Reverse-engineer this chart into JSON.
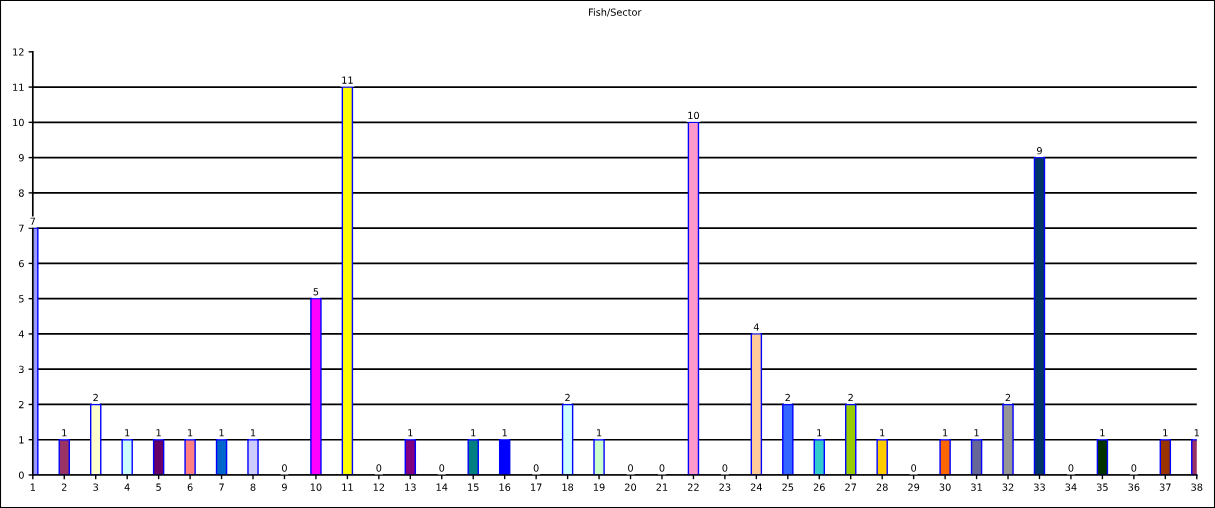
{
  "chart_data": {
    "type": "bar",
    "title": "Fish/Sector",
    "categories": [
      "1",
      "2",
      "3",
      "4",
      "5",
      "6",
      "7",
      "8",
      "9",
      "10",
      "11",
      "12",
      "13",
      "14",
      "15",
      "16",
      "17",
      "18",
      "19",
      "20",
      "21",
      "22",
      "23",
      "24",
      "25",
      "26",
      "27",
      "28",
      "29",
      "30",
      "31",
      "32",
      "33",
      "34",
      "35",
      "36",
      "37",
      "38"
    ],
    "values": [
      7,
      1,
      2,
      1,
      1,
      1,
      1,
      1,
      0,
      5,
      11,
      0,
      1,
      0,
      1,
      1,
      0,
      2,
      1,
      0,
      0,
      10,
      0,
      4,
      2,
      1,
      2,
      1,
      0,
      1,
      1,
      2,
      9,
      0,
      1,
      0,
      1,
      1
    ],
    "colors": [
      "#9999ff",
      "#993366",
      "#ffffcc",
      "#ccffff",
      "#660066",
      "#ff8080",
      "#0066cc",
      "#ccccff",
      null,
      "#ff00ff",
      "#ffff00",
      null,
      "#800080",
      null,
      "#008080",
      "#0000ff",
      null,
      "#ccffff",
      "#ccffcc",
      null,
      null,
      "#ff99cc",
      null,
      "#ffcc99",
      "#3366ff",
      "#33cccc",
      "#99cc00",
      "#ffcc00",
      null,
      "#ff6600",
      "#666699",
      "#969696",
      "#003366",
      null,
      "#003300",
      null,
      "#993300",
      "#993366"
    ],
    "ylim": [
      0,
      12
    ],
    "yticks": [
      0,
      1,
      2,
      3,
      4,
      5,
      6,
      7,
      8,
      9,
      10,
      11,
      12
    ],
    "grid": "y",
    "data_labels": true
  }
}
